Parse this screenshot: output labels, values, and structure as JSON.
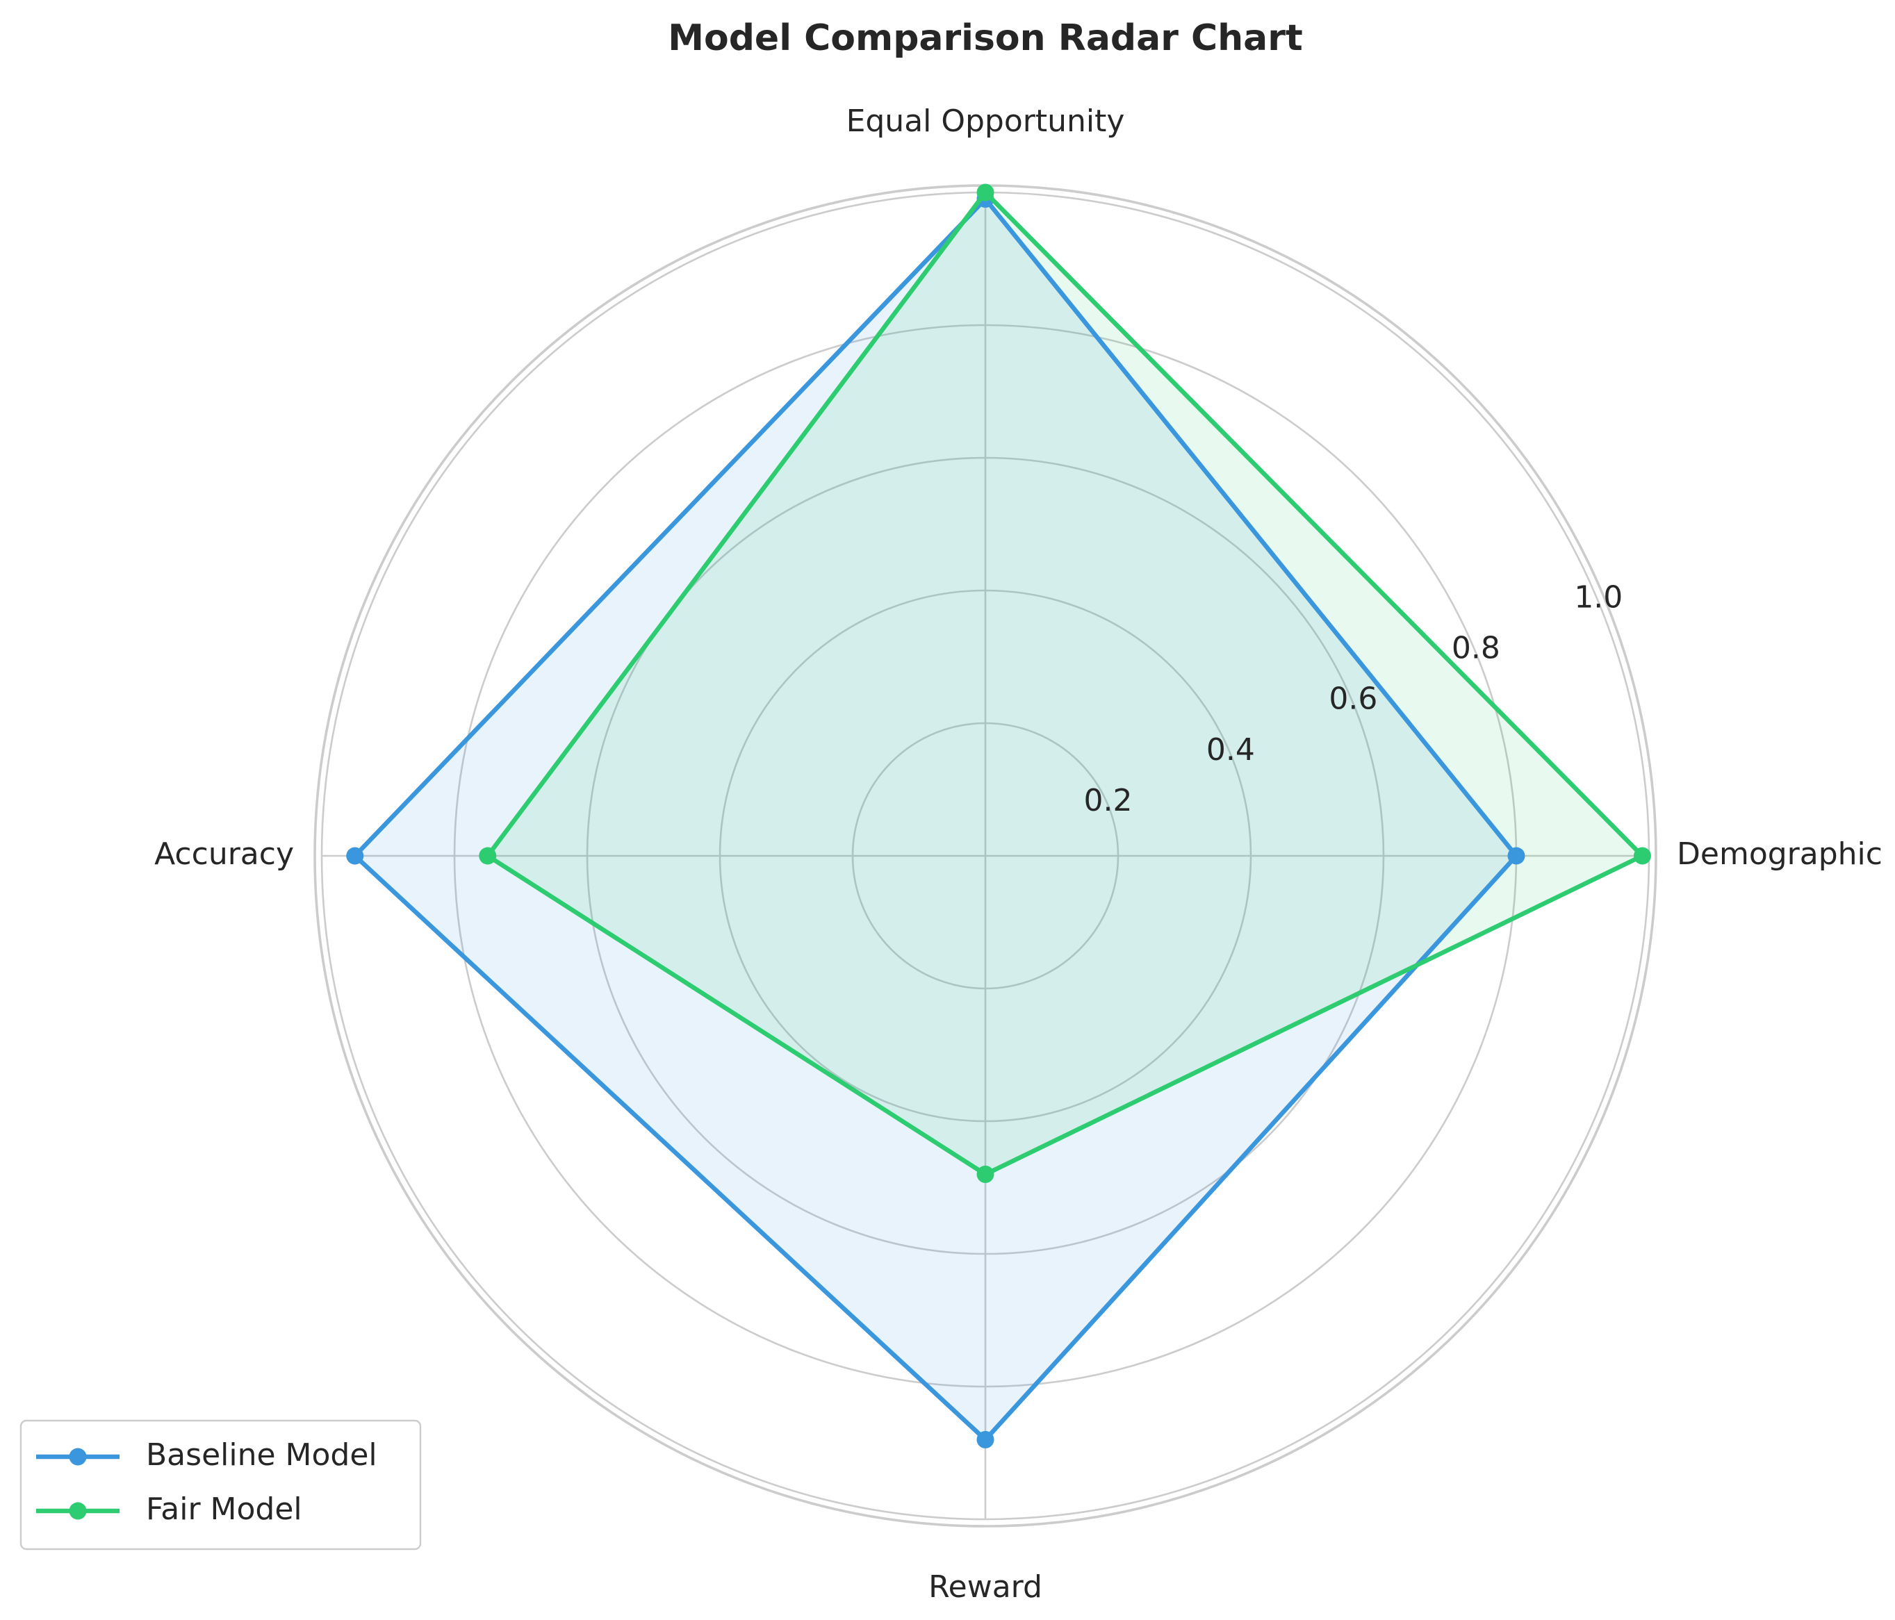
{
  "chart_data": {
    "type": "radar",
    "title": "Model Comparison Radar Chart",
    "axes": [
      "Demographic Parity",
      "Equal Opportunity",
      "Accuracy",
      "Reward"
    ],
    "r_ticks": [
      "0.2",
      "0.4",
      "0.6",
      "0.8",
      "1.0"
    ],
    "rlim": [
      0,
      1.0
    ],
    "grid": true,
    "legend_position": "bottom-left",
    "series": [
      {
        "name": "Baseline Model",
        "values": [
          0.8,
          0.99,
          0.95,
          0.88
        ],
        "color": "#3a96dd"
      },
      {
        "name": "Fair Model",
        "values": [
          0.99,
          1.0,
          0.75,
          0.48
        ],
        "color": "#2ecc71"
      }
    ]
  }
}
